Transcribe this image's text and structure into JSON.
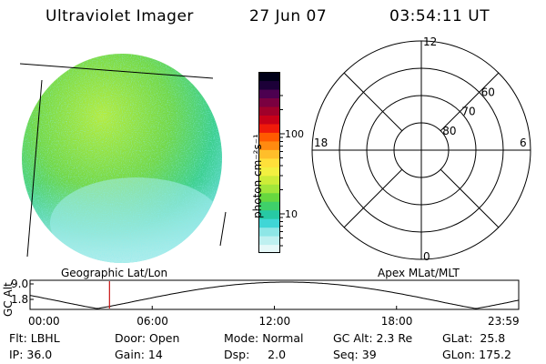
{
  "header": {
    "instrument": "Ultraviolet Imager",
    "date": "27 Jun 07",
    "time": "03:54:11 UT"
  },
  "colorbar": {
    "unit_label": "photon cm⁻²s⁻¹",
    "ticks": [
      {
        "label": "100",
        "value": 100
      },
      {
        "label": "10",
        "value": 10
      }
    ],
    "colors": [
      "#e6f8f8",
      "#bff0f0",
      "#8ee6e6",
      "#3fd6d6",
      "#27c9a4",
      "#3fd06a",
      "#67d83f",
      "#a2e63a",
      "#cdec38",
      "#f3f040",
      "#ffe03a",
      "#ffbe2a",
      "#ff8a10",
      "#ff5a00",
      "#ef1a0a",
      "#c80018",
      "#a0002a",
      "#7a0040",
      "#4c0050",
      "#1c0038",
      "#000018"
    ]
  },
  "polar": {
    "labels": {
      "noon": "12",
      "midnight": "0",
      "dusk": "18",
      "dawn": "6"
    },
    "lat_labels": [
      {
        "label": "60",
        "lat": 60
      },
      {
        "label": "70",
        "lat": 70
      },
      {
        "label": "80",
        "lat": 80
      }
    ]
  },
  "timeline": {
    "y_axis_label": "GC Alt",
    "y_ticks": [
      {
        "label": "9.0",
        "value": 9.0
      },
      {
        "label": "1.8",
        "value": 1.8
      }
    ],
    "left_caption": "Geographic Lat/Lon",
    "right_caption": "Apex MLat/MLT",
    "x_ticks": [
      "00:00",
      "06:00",
      "12:00",
      "18:00",
      "23:59"
    ],
    "current_time_hours": 3.903
  },
  "info": {
    "flt": "Flt: LBHL",
    "ip": "IP: 36.0",
    "door": "Door: Open",
    "gain": "Gain: 14",
    "mode": "Mode: Normal",
    "dsp": "Dsp:     2.0",
    "gc_alt": "GC Alt: 2.3 Re",
    "seq": "Seq: 39",
    "glat": "GLat:  25.8",
    "glon": "GLon: 175.2"
  }
}
